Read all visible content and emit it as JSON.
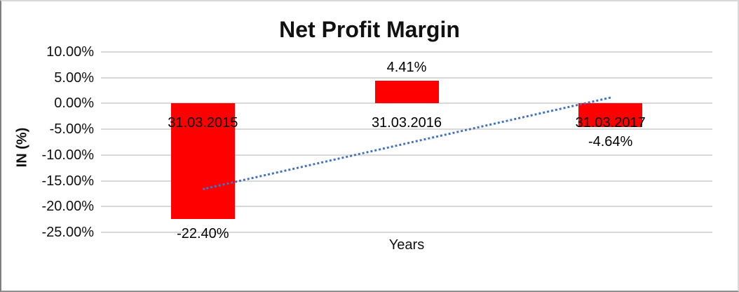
{
  "window": {
    "background": "#ffffff",
    "frame_border_light": "#d9d9d9",
    "frame_border_dark": "#7f7f7f"
  },
  "chart_data": {
    "type": "bar",
    "title": "Net Profit Margin",
    "xlabel": "Years",
    "ylabel": "IN (%)",
    "categories": [
      "31.03.2015",
      "31.03.2016",
      "31.03.2017"
    ],
    "values": [
      -22.4,
      4.41,
      -4.64
    ],
    "data_labels": [
      "-22.40%",
      "4.41%",
      "-4.64%"
    ],
    "ylim": [
      -25,
      10
    ],
    "ytick_values": [
      10,
      5,
      0,
      -5,
      -10,
      -15,
      -20,
      -25
    ],
    "ytick_labels": [
      "10.00%",
      "5.00%",
      "0.00%",
      "-5.00%",
      "-10.00%",
      "-15.00%",
      "-20.00%",
      "-25.00%"
    ],
    "grid": true,
    "legend": false,
    "bar_color": "#ff0000",
    "gridline_color": "#d9d9d9",
    "trendline": {
      "type": "linear",
      "style": "dotted",
      "color": "#4472c4"
    }
  }
}
